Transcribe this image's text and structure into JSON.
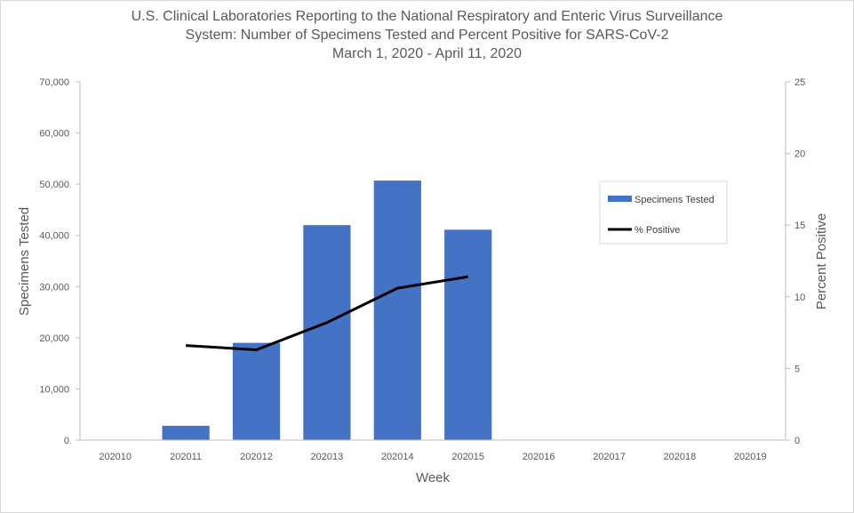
{
  "chart_data": {
    "type": "bar",
    "title_lines": [
      "U.S. Clinical Laboratories Reporting to the National Respiratory and Enteric Virus Surveillance",
      "System: Number of Specimens Tested and Percent Positive for SARS-CoV-2",
      "March 1, 2020 - April 11, 2020"
    ],
    "xlabel": "Week",
    "ylabel": "Specimens Tested",
    "y2label": "Percent Positive",
    "categories": [
      "202010",
      "202011",
      "202012",
      "202013",
      "202014",
      "202015",
      "202016",
      "202017",
      "202018",
      "202019"
    ],
    "ylim": [
      0,
      70000
    ],
    "yticks": [
      0,
      10000,
      20000,
      30000,
      40000,
      50000,
      60000,
      70000
    ],
    "ytick_labels": [
      "0",
      "10,000",
      "20,000",
      "30,000",
      "40,000",
      "50,000",
      "60,000",
      "70,000"
    ],
    "y2lim": [
      0,
      25
    ],
    "y2ticks": [
      0,
      5,
      10,
      15,
      20,
      25
    ],
    "grid": false,
    "legend_position": "right",
    "series": [
      {
        "name": "Specimens Tested",
        "kind": "bar",
        "axis": "left",
        "color": "#4472c4",
        "values": [
          0,
          2800,
          19000,
          42000,
          50700,
          41100,
          null,
          null,
          null,
          null
        ]
      },
      {
        "name": "% Positive",
        "kind": "line",
        "axis": "right",
        "color": "#000000",
        "values": [
          null,
          6.6,
          6.3,
          8.2,
          10.6,
          11.4,
          null,
          null,
          null,
          null
        ]
      }
    ]
  }
}
